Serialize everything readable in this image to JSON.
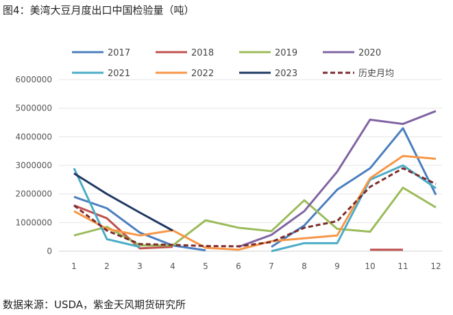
{
  "title": "图4：美湾大豆月度出口中国检验量（吨）",
  "source": "数据来源：USDA，紫金天风期货研究所",
  "chart_data": {
    "type": "line",
    "title": "图4：美湾大豆月度出口中国检验量（吨）",
    "xlabel": "",
    "ylabel": "",
    "categories": [
      "1",
      "2",
      "3",
      "4",
      "5",
      "6",
      "7",
      "8",
      "9",
      "10",
      "11",
      "12"
    ],
    "ylim": [
      0,
      6000000
    ],
    "yticks": [
      "0",
      "1000000",
      "2000000",
      "3000000",
      "4000000",
      "5000000",
      "6000000"
    ],
    "grid": true,
    "legend": "top",
    "series": [
      {
        "name": "2017",
        "color": "#4a7ebf",
        "dash": false,
        "values": [
          1900000,
          1500000,
          650000,
          200000,
          30000,
          null,
          150000,
          900000,
          2150000,
          2900000,
          4300000,
          1970000
        ]
      },
      {
        "name": "2018",
        "color": "#c0504d",
        "dash": false,
        "values": [
          1600000,
          1150000,
          100000,
          150000,
          null,
          null,
          null,
          null,
          null,
          50000,
          50000,
          null
        ]
      },
      {
        "name": "2019",
        "color": "#9bbb59",
        "dash": false,
        "values": [
          550000,
          850000,
          200000,
          200000,
          1080000,
          820000,
          700000,
          1780000,
          780000,
          680000,
          2220000,
          1530000
        ]
      },
      {
        "name": "2020",
        "color": "#8064a2",
        "dash": false,
        "values": [
          null,
          null,
          null,
          null,
          null,
          150000,
          570000,
          1400000,
          2780000,
          4600000,
          4450000,
          4900000
        ]
      },
      {
        "name": "2021",
        "color": "#4bacc6",
        "dash": false,
        "values": [
          2900000,
          420000,
          150000,
          null,
          null,
          null,
          0,
          280000,
          280000,
          2500000,
          3000000,
          2200000
        ]
      },
      {
        "name": "2022",
        "color": "#f79646",
        "dash": false,
        "values": [
          1400000,
          780000,
          550000,
          730000,
          120000,
          50000,
          350000,
          450000,
          550000,
          2550000,
          3330000,
          3230000
        ]
      },
      {
        "name": "2023",
        "color": "#1f3864",
        "dash": false,
        "values": [
          2720000,
          2000000,
          1350000,
          720000,
          null,
          null,
          null,
          null,
          null,
          null,
          null,
          null
        ]
      },
      {
        "name": "历史月均",
        "color": "#7b2c2c",
        "dash": true,
        "values": [
          1600000,
          720000,
          250000,
          220000,
          180000,
          170000,
          320000,
          820000,
          1050000,
          2250000,
          2900000,
          2350000
        ]
      }
    ]
  }
}
